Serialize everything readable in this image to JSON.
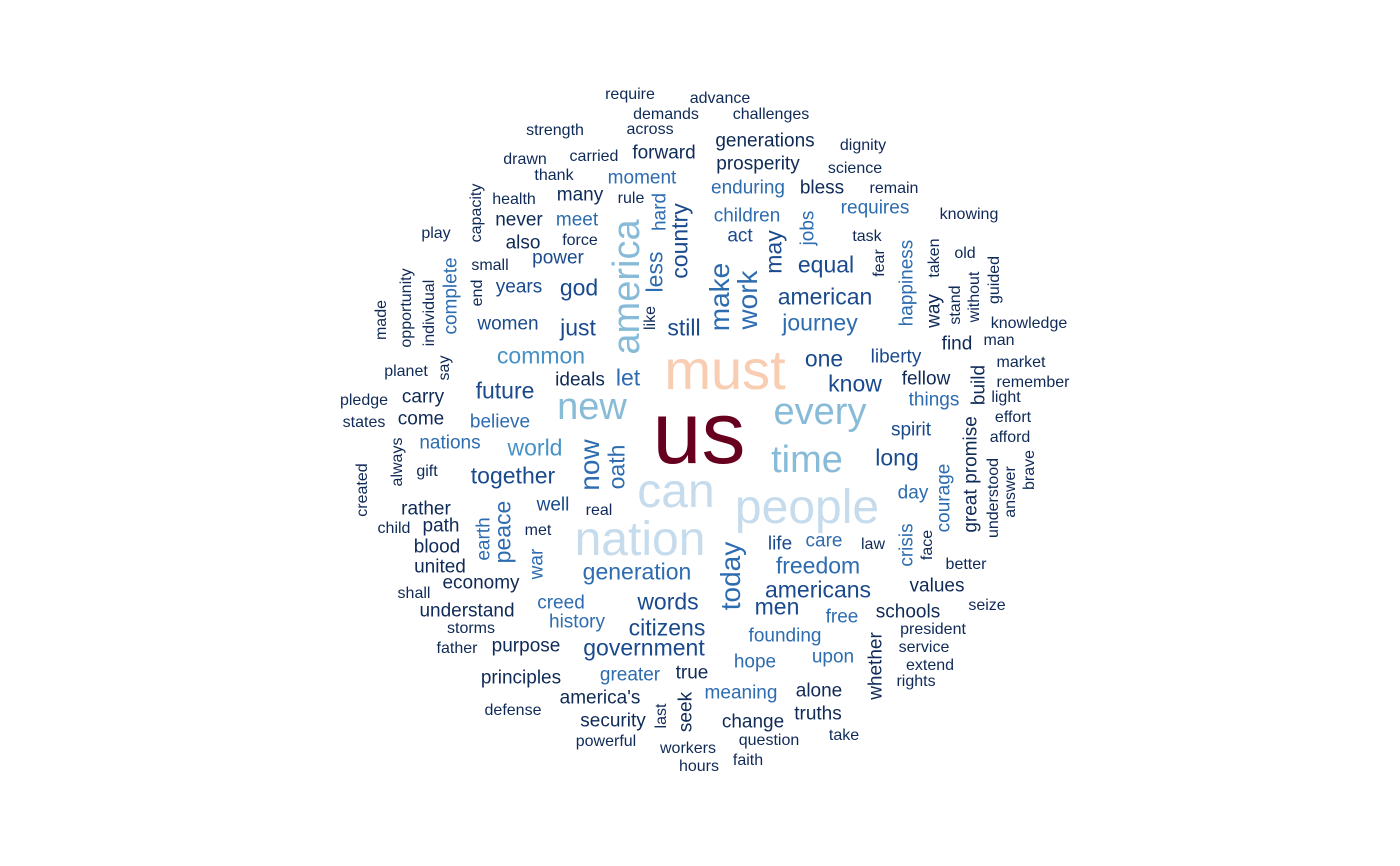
{
  "colors": {
    "c1": "#0f2a57",
    "c2": "#1a4a8d",
    "c3": "#2d6cb0",
    "c4": "#4692c4",
    "c5": "#87bbd8",
    "c6": "#c6dced",
    "c7": "#f8cdb2",
    "c8": "#67001f"
  },
  "words": [
    "us",
    "must",
    "can",
    "nation",
    "people",
    "time",
    "new",
    "every",
    "america",
    "now",
    "oath",
    "today",
    "generation",
    "together",
    "common",
    "world",
    "make",
    "work",
    "freedom",
    "government",
    "country",
    "just",
    "god",
    "let",
    "still",
    "journey",
    "american",
    "americans",
    "words",
    "citizens",
    "less",
    "equal",
    "know",
    "liberty",
    "one",
    "men",
    "spirit",
    "long",
    "future",
    "believe",
    "women",
    "years",
    "power",
    "may",
    "jobs",
    "happiness",
    "courage",
    "peace",
    "earth",
    "nations",
    "moment",
    "meet",
    "hard",
    "children",
    "enduring",
    "requires",
    "act",
    "history",
    "creed",
    "founding",
    "hope",
    "upon",
    "meaning",
    "greater",
    "crisis",
    "day",
    "things",
    "well",
    "war",
    "free",
    "care",
    "life",
    "complete",
    "forward",
    "generations",
    "prosperity",
    "bless",
    "task",
    "remain",
    "science",
    "dignity",
    "knowing",
    "many",
    "rule",
    "never",
    "also",
    "force",
    "small",
    "health",
    "thank",
    "drawn",
    "carried",
    "strength",
    "across",
    "demands",
    "require",
    "advance",
    "challenges",
    "play",
    "capacity",
    "made",
    "opportunity",
    "individual",
    "say",
    "planet",
    "pledge",
    "states",
    "carry",
    "come",
    "always",
    "gift",
    "created",
    "rather",
    "path",
    "child",
    "blood",
    "united",
    "shall",
    "economy",
    "understand",
    "storms",
    "father",
    "purpose",
    "principles",
    "defense",
    "america's",
    "security",
    "powerful",
    "last",
    "seek",
    "workers",
    "hours",
    "change",
    "question",
    "faith",
    "alone",
    "truths",
    "take",
    "true",
    "whether",
    "schools",
    "president",
    "service",
    "extend",
    "rights",
    "values",
    "better",
    "seize",
    "face",
    "law",
    "great",
    "promise",
    "understood",
    "answer",
    "brave",
    "afford",
    "effort",
    "light",
    "remember",
    "market",
    "build",
    "fellow",
    "find",
    "man",
    "knowledge",
    "way",
    "stand",
    "without",
    "guided",
    "taken",
    "old",
    "fear",
    "end",
    "like",
    "ideals",
    "real",
    "met"
  ]
}
